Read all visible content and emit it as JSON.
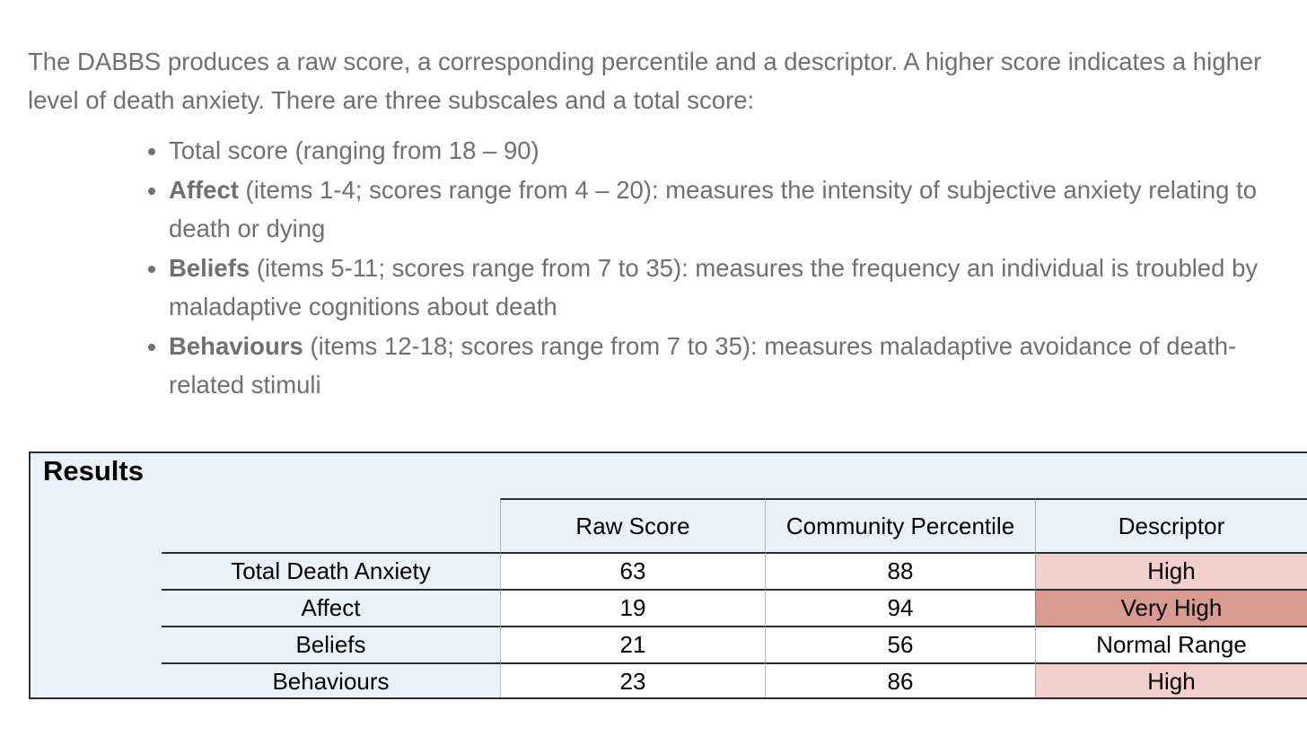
{
  "intro": {
    "text": "The DABBS produces a raw score, a corresponding percentile and a descriptor. A higher score indicates a higher level of death anxiety. There are three subscales and a total score:"
  },
  "subscales": {
    "items": [
      {
        "bold": "",
        "text": "Total score (ranging from 18 – 90)"
      },
      {
        "bold": "Affect",
        "text": " (items 1-4; scores range from 4 – 20): measures the intensity of subjective anxiety relating to death or dying"
      },
      {
        "bold": "Beliefs",
        "text": " (items 5-11; scores range from 7 to 35): measures the frequency an individual is troubled by maladaptive cognitions about death"
      },
      {
        "bold": "Behaviours",
        "text": " (items 12-18; scores range from 7 to 35): measures maladaptive avoidance of death-related stimuli"
      }
    ]
  },
  "results": {
    "title": "Results",
    "columns": {
      "raw_score": "Raw Score",
      "community_percentile": "Community Percentile",
      "descriptor": "Descriptor"
    },
    "rows": [
      {
        "label": "Total Death Anxiety",
        "raw_score": "63",
        "community_percentile": "88",
        "descriptor": "High",
        "descriptor_color": "#f3cfcb"
      },
      {
        "label": "Affect",
        "raw_score": "19",
        "community_percentile": "94",
        "descriptor": "Very High",
        "descriptor_color": "#d99a91"
      },
      {
        "label": "Beliefs",
        "raw_score": "21",
        "community_percentile": "56",
        "descriptor": "Normal Range",
        "descriptor_color": "#ffffff"
      },
      {
        "label": "Behaviours",
        "raw_score": "23",
        "community_percentile": "86",
        "descriptor": "High",
        "descriptor_color": "#f3cfcb"
      }
    ],
    "colors": {
      "table_background": "#e9f1fa",
      "border": "#2d2d2d",
      "high_background": "#f3cfcb",
      "very_high_background": "#d99a91",
      "normal_background": "#ffffff"
    }
  }
}
